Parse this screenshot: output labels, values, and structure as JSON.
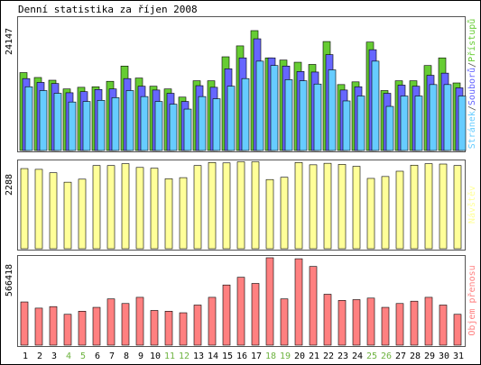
{
  "title": "Denní statistika za říjen 2008",
  "colors": {
    "frame": "#000000",
    "panel_border": "#555555",
    "background": "#ffffff",
    "weekend_day": "#6db33f",
    "weekday": "#000000"
  },
  "chart_data": [
    {
      "type": "bar",
      "title": "Denní statistika za říjen 2008",
      "ylabel_max": "24147",
      "legend_labels": [
        "Stránek",
        "/",
        "Souborů",
        "/",
        "Přístupů"
      ],
      "legend_colors": [
        "#66ccff",
        "#555555",
        "#6666ff",
        "#555555",
        "#66cc33"
      ],
      "series": [
        {
          "name": "Přístupů",
          "color": "#66cc33",
          "values": [
            14300,
            13400,
            12900,
            11300,
            11600,
            11700,
            12700,
            15500,
            13300,
            11800,
            11300,
            9800,
            12800,
            12800,
            17200,
            19200,
            22000,
            17000,
            16600,
            16200,
            15800,
            20000,
            12100,
            12600,
            19900,
            11000,
            12800,
            12800,
            15600,
            17000,
            12400
          ]
        },
        {
          "name": "Souborů",
          "color": "#6666ff",
          "values": [
            13200,
            12500,
            12300,
            10600,
            10800,
            11200,
            11300,
            13200,
            11800,
            11100,
            10500,
            9000,
            11900,
            11600,
            15000,
            17000,
            20500,
            17000,
            15500,
            14500,
            14400,
            17600,
            11100,
            11700,
            18500,
            10500,
            12000,
            11800,
            13800,
            14200,
            11500
          ]
        },
        {
          "name": "Stránek",
          "color": "#66ccff",
          "values": [
            11700,
            11000,
            10500,
            8900,
            9000,
            9200,
            9700,
            11000,
            9900,
            9000,
            8500,
            7600,
            9900,
            9500,
            11800,
            13200,
            16400,
            15600,
            13000,
            12800,
            12200,
            14800,
            9100,
            10000,
            16400,
            8100,
            10000,
            10000,
            12100,
            12100,
            10000
          ]
        }
      ],
      "ylim": [
        0,
        24147
      ]
    },
    {
      "type": "bar",
      "ylabel_max": "2288",
      "legend_labels": [
        "Návštěv"
      ],
      "legend_colors": [
        "#ffff99"
      ],
      "series": [
        {
          "name": "Návštěv",
          "color": "#ffff99",
          "values": [
            2120,
            2100,
            2010,
            1760,
            1840,
            2200,
            2200,
            2250,
            2150,
            2130,
            1850,
            1880,
            2200,
            2280,
            2270,
            2300,
            2300,
            1830,
            1890,
            2280,
            2220,
            2260,
            2230,
            2180,
            1860,
            1910,
            2050,
            2210,
            2250,
            2240,
            2200
          ]
        }
      ],
      "ylim": [
        0,
        2288
      ]
    },
    {
      "type": "bar",
      "ylabel_max": "566418",
      "legend_labels": [
        "Objem přenosu"
      ],
      "legend_colors": [
        "#ff8080"
      ],
      "series": [
        {
          "name": "Objem přenosu",
          "color": "#ff8080",
          "values": [
            280000,
            240000,
            250000,
            200000,
            220000,
            245000,
            300000,
            270000,
            310000,
            225000,
            220000,
            210000,
            260000,
            310000,
            390000,
            440000,
            400000,
            566418,
            300000,
            560000,
            510000,
            330000,
            290000,
            295000,
            305000,
            245000,
            270000,
            285000,
            310000,
            260000,
            200000
          ]
        }
      ],
      "ylim": [
        0,
        566418
      ]
    }
  ],
  "x_axis": {
    "days": [
      "1",
      "2",
      "3",
      "4",
      "5",
      "6",
      "7",
      "8",
      "9",
      "10",
      "11",
      "12",
      "13",
      "14",
      "15",
      "16",
      "17",
      "18",
      "19",
      "20",
      "21",
      "22",
      "23",
      "24",
      "25",
      "26",
      "27",
      "28",
      "29",
      "30",
      "31"
    ],
    "weekend": [
      4,
      5,
      11,
      12,
      18,
      19,
      25,
      26
    ]
  }
}
